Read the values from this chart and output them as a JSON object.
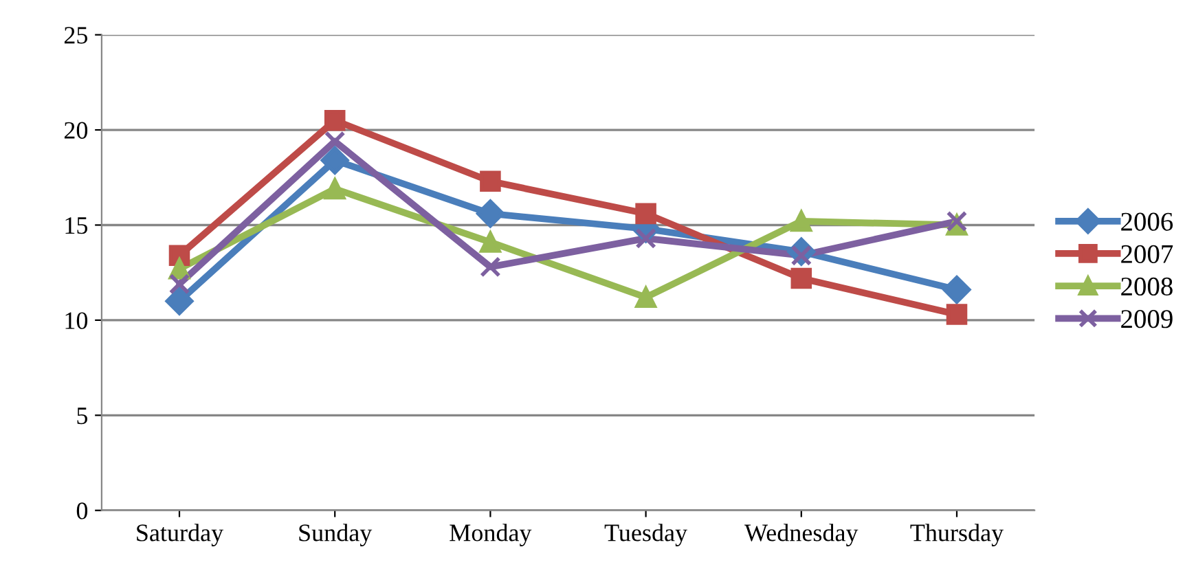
{
  "chart_data": {
    "type": "line",
    "categories": [
      "Saturday",
      "Sunday",
      "Monday",
      "Tuesday",
      "Wednesday",
      "Thursday"
    ],
    "series": [
      {
        "name": "2006",
        "color": "#4a7ebb",
        "marker": "diamond",
        "values": [
          11.0,
          18.4,
          15.6,
          14.8,
          13.6,
          11.6
        ]
      },
      {
        "name": "2007",
        "color": "#be4b48",
        "marker": "square",
        "values": [
          13.4,
          20.5,
          17.3,
          15.6,
          12.2,
          10.3
        ]
      },
      {
        "name": "2008",
        "color": "#98b954",
        "marker": "triangle",
        "values": [
          12.7,
          16.9,
          14.1,
          11.2,
          15.2,
          15.0
        ]
      },
      {
        "name": "2009",
        "color": "#7d60a0",
        "marker": "cross",
        "values": [
          11.9,
          19.4,
          12.8,
          14.3,
          13.4,
          15.2
        ]
      }
    ],
    "ylim": [
      0,
      25
    ],
    "yticks": [
      0,
      5,
      10,
      15,
      20,
      25
    ],
    "grid": "y",
    "legend": "right",
    "line_style": "solid"
  }
}
